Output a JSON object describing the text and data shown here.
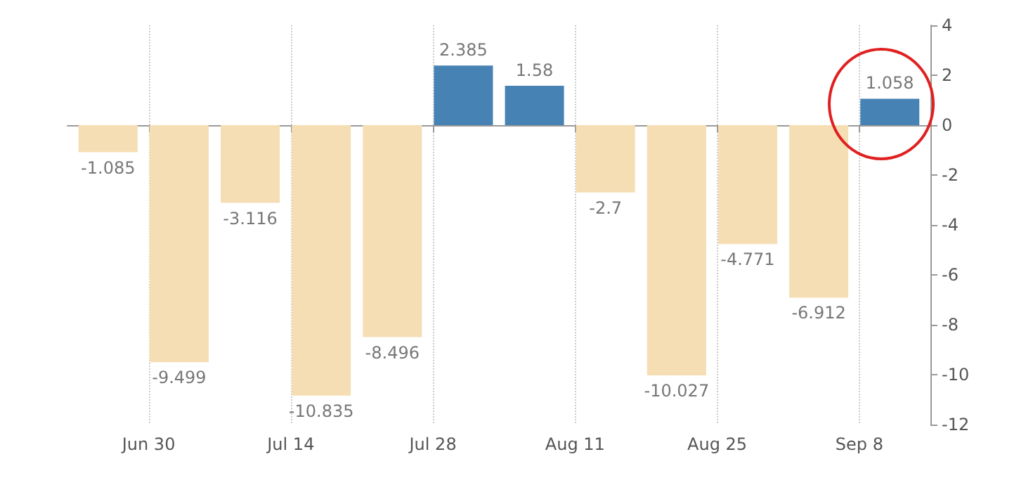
{
  "chart_data": {
    "type": "bar",
    "x": [
      "--06-26",
      "--07-03",
      "--07-10",
      "--07-17",
      "--07-24",
      "--07-31",
      "--08-07",
      "--08-14",
      "--08-21",
      "--08-28",
      "--09-04",
      "--09-11"
    ],
    "values": [
      -1.085,
      -9.499,
      -3.116,
      -10.835,
      -8.496,
      2.385,
      1.58,
      -2.7,
      -10.027,
      -4.771,
      -6.912,
      1.058
    ],
    "colors": [
      "#f5deb3",
      "#f5deb3",
      "#f5deb3",
      "#f5deb3",
      "#f5deb3",
      "#4682b4",
      "#4682b4",
      "#f5deb3",
      "#f5deb3",
      "#f5deb3",
      "#f5deb3",
      "#4682b4"
    ],
    "xlim": [
      "--06-22",
      "--09-15"
    ],
    "xticks": [
      {
        "value": "--06-30",
        "label": "Jun 30"
      },
      {
        "value": "--07-14",
        "label": "Jul 14"
      },
      {
        "value": "--07-28",
        "label": "Jul 28"
      },
      {
        "value": "--08-11",
        "label": "Aug 11"
      },
      {
        "value": "--08-25",
        "label": "Aug 25"
      },
      {
        "value": "--09-08",
        "label": "Sep 8"
      }
    ],
    "ylim": [
      -12,
      4
    ],
    "yticks": [
      -12,
      -10,
      -8,
      -6,
      -4,
      -2,
      0,
      2,
      4
    ],
    "grid": "x",
    "data_labels": true
  }
}
